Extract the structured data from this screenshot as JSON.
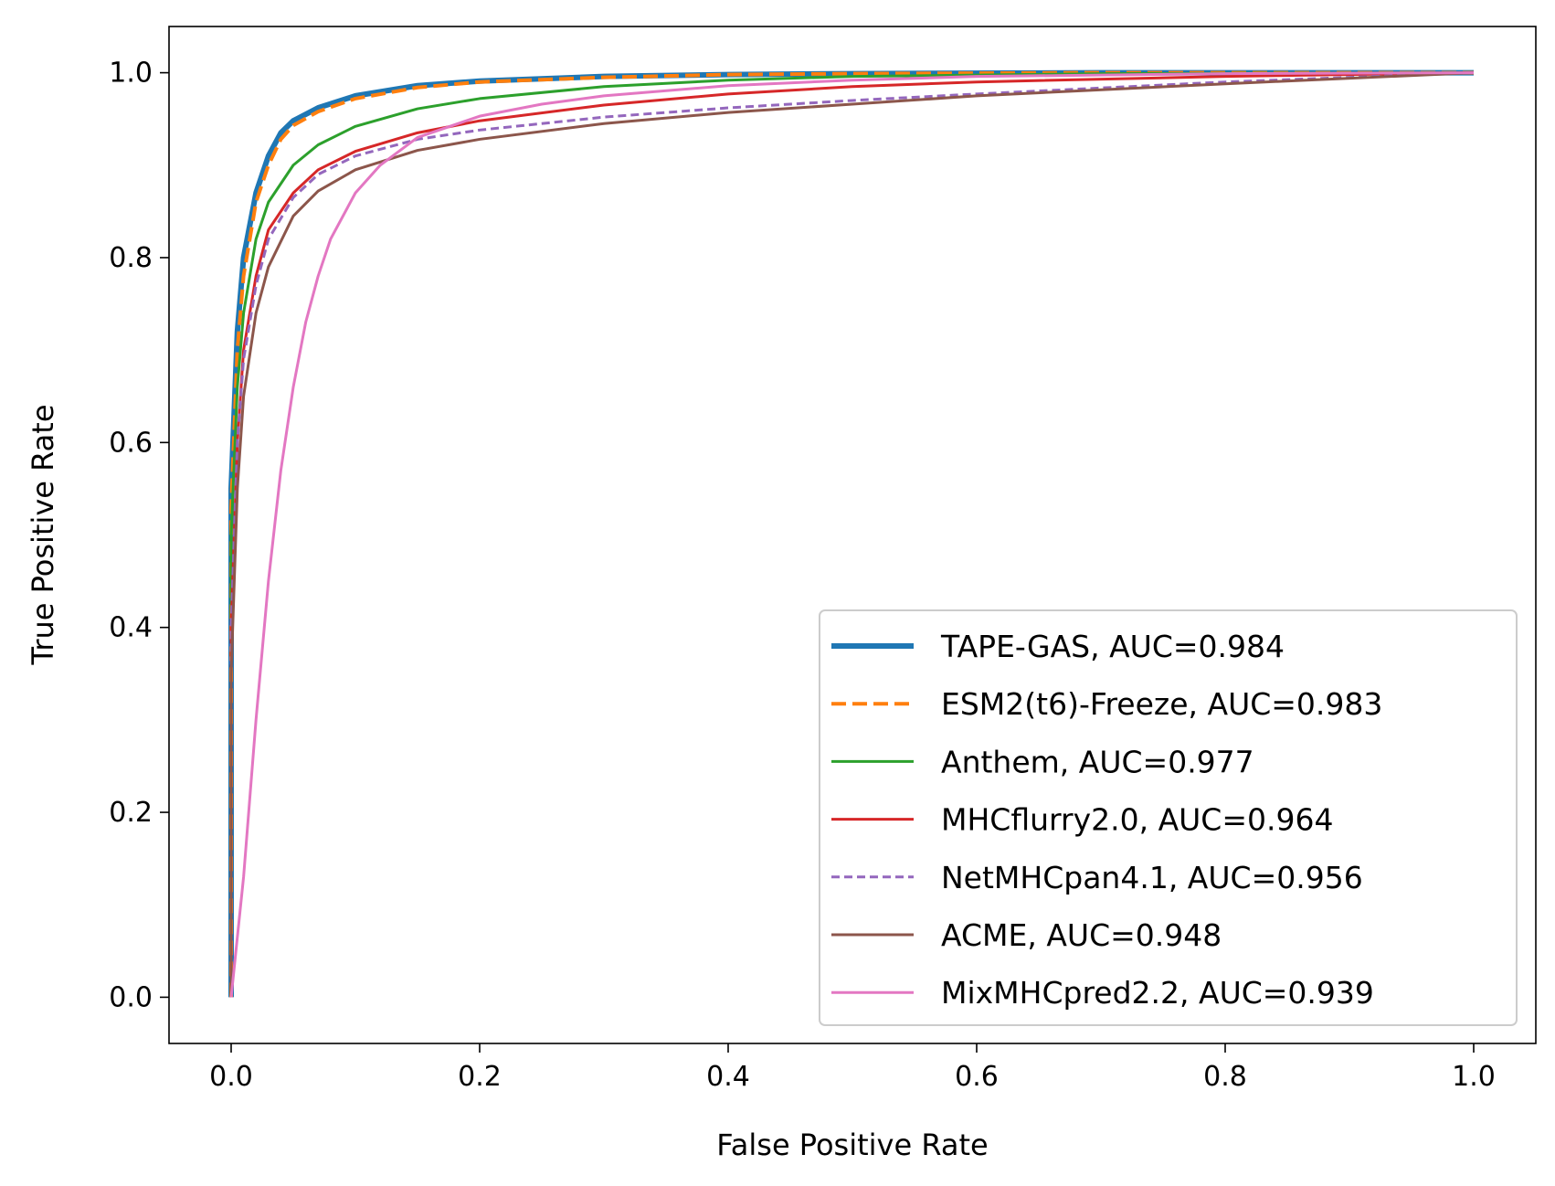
{
  "chart_data": {
    "type": "line",
    "title": "",
    "xlabel": "False Positive Rate",
    "ylabel": "True Positive Rate",
    "xlim": [
      -0.05,
      1.05
    ],
    "ylim": [
      -0.05,
      1.05
    ],
    "xticks": [
      0.0,
      0.2,
      0.4,
      0.6,
      0.8,
      1.0
    ],
    "yticks": [
      0.0,
      0.2,
      0.4,
      0.6,
      0.8,
      1.0
    ],
    "xtick_labels": [
      "0.0",
      "0.2",
      "0.4",
      "0.6",
      "0.8",
      "1.0"
    ],
    "ytick_labels": [
      "0.0",
      "0.2",
      "0.4",
      "0.6",
      "0.8",
      "1.0"
    ],
    "grid": false,
    "legend_position": "bottom-right",
    "series": [
      {
        "name": "TAPE-GAS, AUC=0.984",
        "color": "#1f77b4",
        "style": "solid",
        "width": 6,
        "x": [
          0.0,
          0.0,
          0.005,
          0.01,
          0.02,
          0.03,
          0.04,
          0.05,
          0.07,
          0.1,
          0.15,
          0.2,
          0.3,
          0.4,
          0.5,
          0.7,
          1.0
        ],
        "y": [
          0.0,
          0.55,
          0.72,
          0.8,
          0.87,
          0.91,
          0.935,
          0.948,
          0.962,
          0.975,
          0.986,
          0.991,
          0.996,
          0.998,
          0.999,
          1.0,
          1.0
        ]
      },
      {
        "name": "ESM2(t6)-Freeze, AUC=0.983",
        "color": "#ff7f0e",
        "style": "dashed",
        "width": 4,
        "x": [
          0.0,
          0.0,
          0.005,
          0.01,
          0.02,
          0.03,
          0.04,
          0.05,
          0.07,
          0.1,
          0.15,
          0.2,
          0.3,
          0.4,
          0.5,
          0.7,
          1.0
        ],
        "y": [
          0.0,
          0.53,
          0.7,
          0.78,
          0.86,
          0.9,
          0.928,
          0.943,
          0.958,
          0.972,
          0.984,
          0.99,
          0.995,
          0.998,
          0.999,
          1.0,
          1.0
        ]
      },
      {
        "name": "Anthem, AUC=0.977",
        "color": "#2ca02c",
        "style": "solid",
        "width": 3,
        "x": [
          0.0,
          0.0,
          0.005,
          0.01,
          0.02,
          0.03,
          0.05,
          0.07,
          0.1,
          0.15,
          0.2,
          0.3,
          0.4,
          0.5,
          0.7,
          1.0
        ],
        "y": [
          0.0,
          0.5,
          0.66,
          0.74,
          0.82,
          0.86,
          0.9,
          0.922,
          0.942,
          0.961,
          0.972,
          0.985,
          0.992,
          0.996,
          0.999,
          1.0
        ]
      },
      {
        "name": "MHCflurry2.0, AUC=0.964",
        "color": "#d62728",
        "style": "solid",
        "width": 3,
        "x": [
          0.0,
          0.0,
          0.005,
          0.01,
          0.02,
          0.03,
          0.05,
          0.07,
          0.1,
          0.15,
          0.2,
          0.3,
          0.4,
          0.5,
          0.6,
          0.8,
          1.0
        ],
        "y": [
          0.0,
          0.4,
          0.6,
          0.7,
          0.78,
          0.83,
          0.87,
          0.895,
          0.915,
          0.935,
          0.948,
          0.965,
          0.977,
          0.985,
          0.99,
          0.996,
          1.0
        ]
      },
      {
        "name": "NetMHCpan4.1, AUC=0.956",
        "color": "#9467bd",
        "style": "dashed",
        "width": 3,
        "x": [
          0.0,
          0.0,
          0.005,
          0.01,
          0.02,
          0.03,
          0.05,
          0.07,
          0.1,
          0.15,
          0.2,
          0.3,
          0.4,
          0.5,
          0.6,
          0.8,
          1.0
        ],
        "y": [
          0.0,
          0.4,
          0.6,
          0.69,
          0.77,
          0.82,
          0.865,
          0.89,
          0.91,
          0.928,
          0.938,
          0.952,
          0.962,
          0.97,
          0.977,
          0.99,
          1.0
        ]
      },
      {
        "name": "ACME, AUC=0.948",
        "color": "#8c564b",
        "style": "solid",
        "width": 3,
        "x": [
          0.0,
          0.0,
          0.005,
          0.01,
          0.02,
          0.03,
          0.05,
          0.07,
          0.1,
          0.15,
          0.2,
          0.3,
          0.4,
          0.5,
          0.6,
          0.8,
          1.0
        ],
        "y": [
          0.0,
          0.35,
          0.55,
          0.65,
          0.74,
          0.79,
          0.845,
          0.872,
          0.895,
          0.916,
          0.928,
          0.945,
          0.957,
          0.966,
          0.975,
          0.988,
          1.0
        ]
      },
      {
        "name": "MixMHCpred2.2, AUC=0.939",
        "color": "#e377c2",
        "style": "solid",
        "width": 3,
        "x": [
          0.0,
          0.01,
          0.02,
          0.03,
          0.04,
          0.05,
          0.06,
          0.07,
          0.08,
          0.1,
          0.12,
          0.15,
          0.2,
          0.25,
          0.3,
          0.4,
          0.5,
          0.6,
          0.8,
          1.0
        ],
        "y": [
          0.0,
          0.13,
          0.3,
          0.45,
          0.57,
          0.66,
          0.73,
          0.78,
          0.82,
          0.87,
          0.9,
          0.93,
          0.953,
          0.966,
          0.975,
          0.986,
          0.992,
          0.996,
          0.999,
          1.0
        ]
      }
    ]
  }
}
